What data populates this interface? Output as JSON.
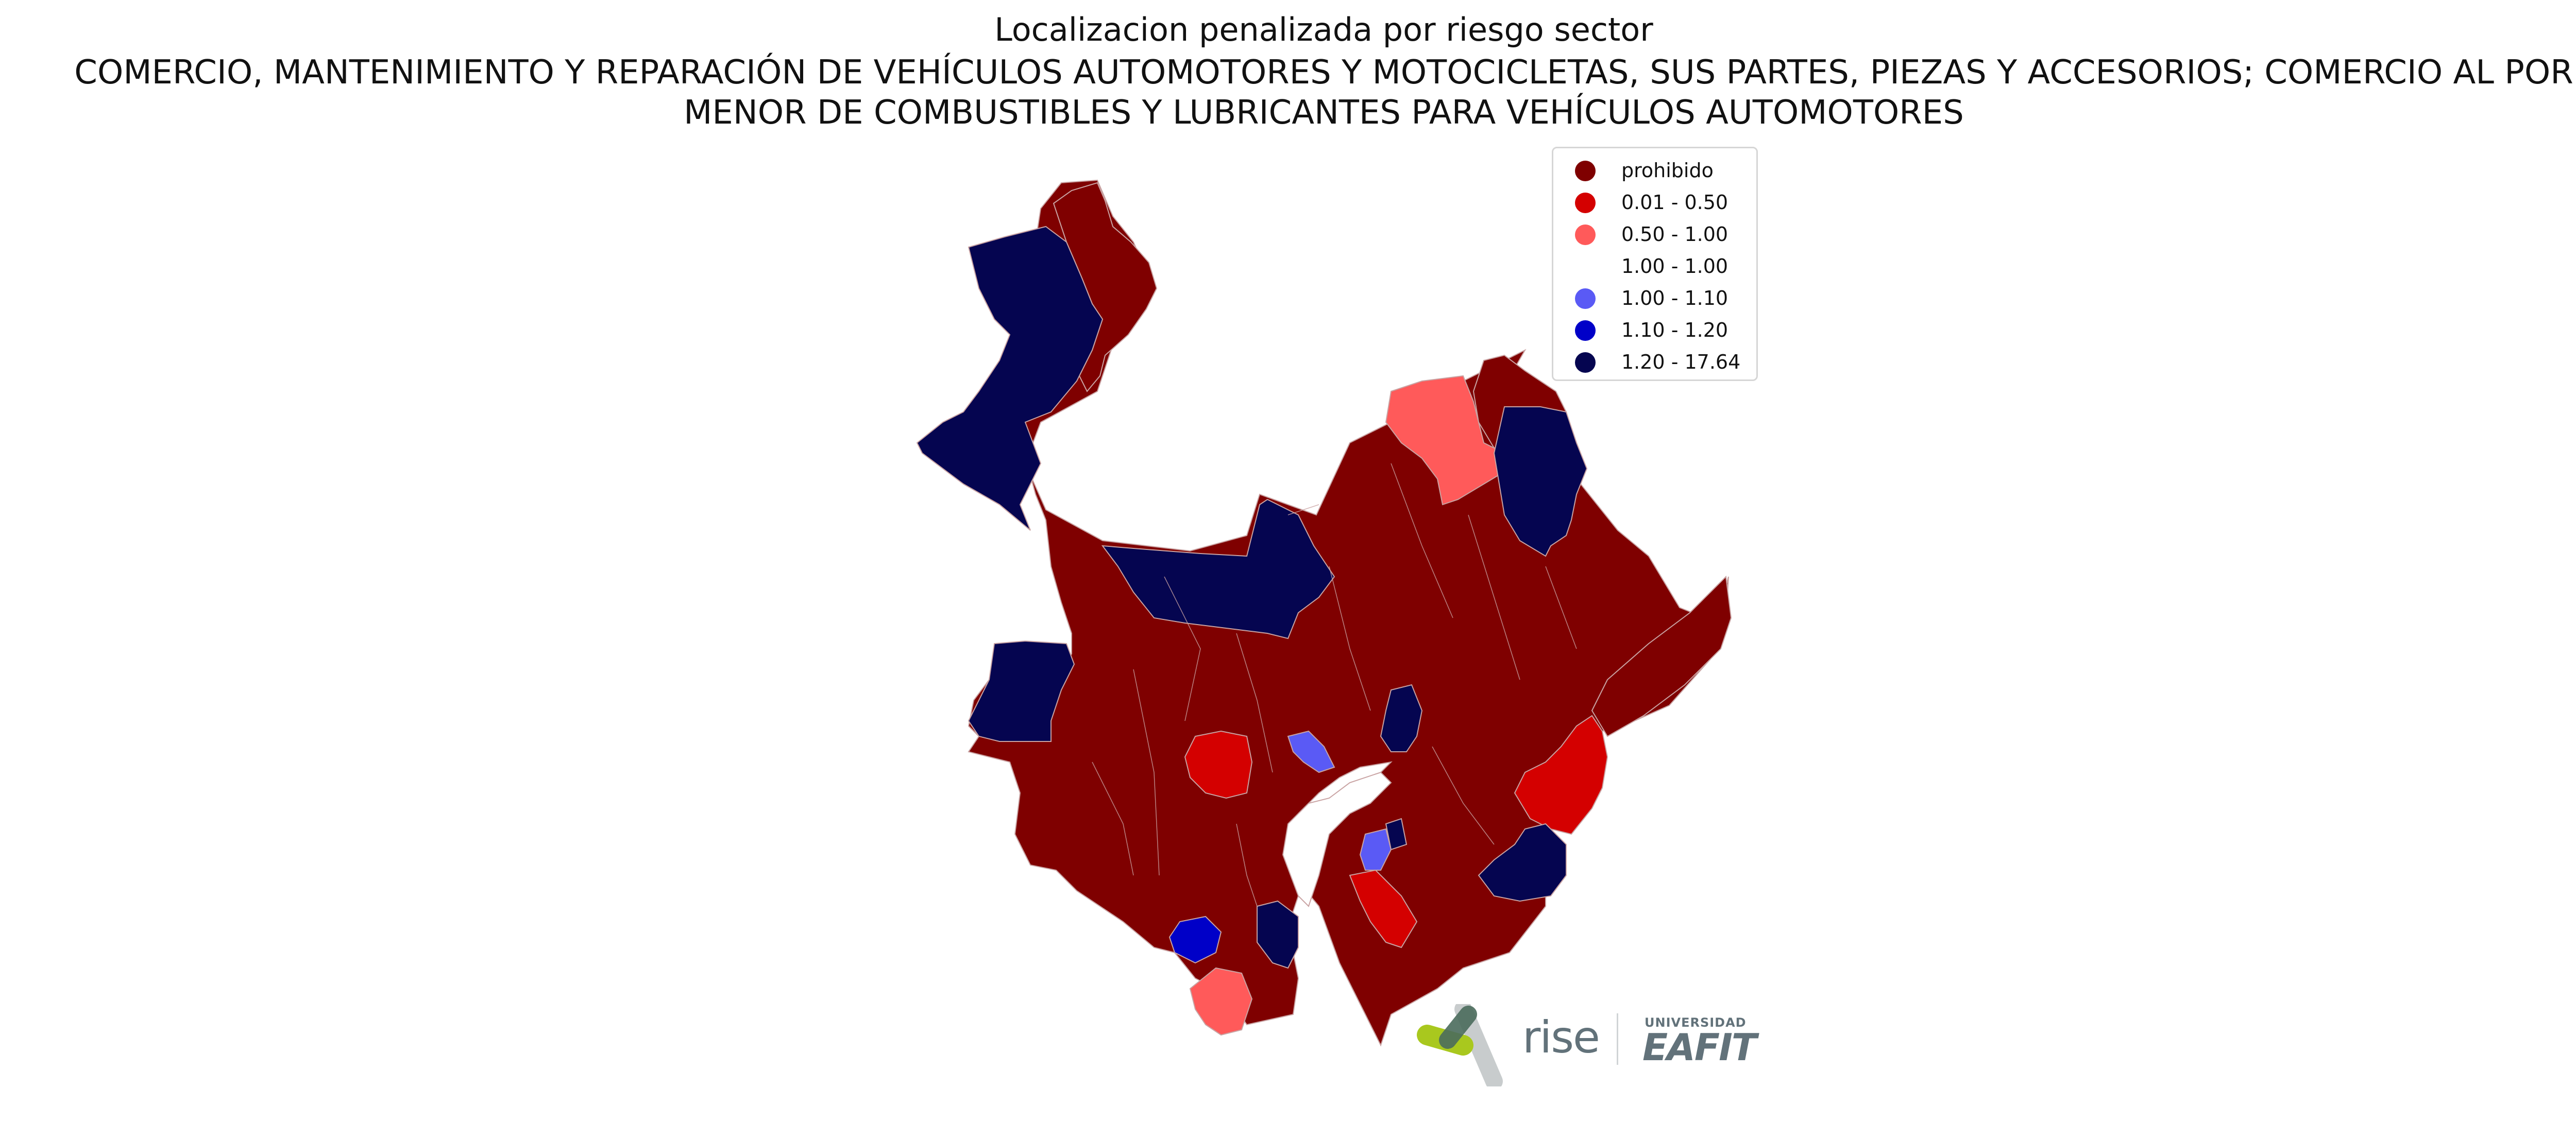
{
  "title": {
    "line1": "Localizacion penalizada por riesgo sector",
    "line2": "COMERCIO, MANTENIMIENTO Y REPARACIÓN DE VEHÍCULOS AUTOMOTORES Y MOTOCICLETAS, SUS PARTES, PIEZAS Y ACCESORIOS; COMERCIO AL POR",
    "line3": "MENOR DE COMBUSTIBLES Y LUBRICANTES PARA VEHÍCULOS AUTOMOTORES"
  },
  "legend": {
    "items": [
      {
        "label": "prohibido",
        "color": "#7f0000"
      },
      {
        "label": "0.01 - 0.50",
        "color": "#d40000"
      },
      {
        "label": "0.50 - 1.00",
        "color": "#ff5a5a"
      },
      {
        "label": "1.00 - 1.00",
        "color": "#ffffff"
      },
      {
        "label": "1.00 - 1.10",
        "color": "#5a5af5"
      },
      {
        "label": "1.10 - 1.20",
        "color": "#0000c8"
      },
      {
        "label": "1.20 - 17.64",
        "color": "#050550"
      }
    ]
  },
  "logos": {
    "rise": "rise",
    "univ": "UNIVERSIDAD",
    "eafit": "EAFIT"
  },
  "colors": {
    "prohibido": "#7f0000",
    "c1": "#d40000",
    "c2": "#ff5a5a",
    "c4": "#5a5af5",
    "c5": "#0000c8",
    "c6": "#050550",
    "border": "#c9a3a3"
  }
}
